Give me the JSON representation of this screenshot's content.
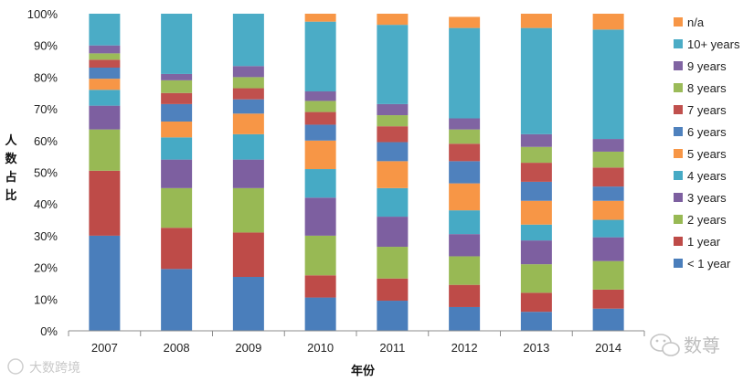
{
  "chart_data": {
    "type": "bar",
    "stacked": true,
    "percent": true,
    "categories": [
      "2007",
      "2008",
      "2009",
      "2010",
      "2011",
      "2012",
      "2013",
      "2014"
    ],
    "xlabel": "年份",
    "ylabel": "人数占比",
    "ylim": [
      0,
      100
    ],
    "yticks": [
      "0%",
      "10%",
      "20%",
      "30%",
      "40%",
      "50%",
      "60%",
      "70%",
      "80%",
      "90%",
      "100%"
    ],
    "legend_position": "right",
    "grid": false,
    "series": [
      {
        "name": "< 1 year",
        "color": "#4a7ebb",
        "values": [
          30,
          19.5,
          17,
          10.5,
          9.5,
          7.5,
          6,
          7
        ]
      },
      {
        "name": "1 year",
        "color": "#be4b48",
        "values": [
          20.5,
          13,
          14,
          7,
          7,
          7,
          6,
          6
        ]
      },
      {
        "name": "2 years",
        "color": "#98b954",
        "values": [
          13,
          12.5,
          14,
          12.5,
          10,
          9,
          9,
          9
        ]
      },
      {
        "name": "3 years",
        "color": "#7d5fa0",
        "values": [
          7.5,
          9,
          9,
          12,
          9.5,
          7,
          7.5,
          7.5
        ]
      },
      {
        "name": "4 years",
        "color": "#46aac5",
        "values": [
          5,
          7,
          8,
          9,
          9,
          7.5,
          5,
          5.5
        ]
      },
      {
        "name": "5 years",
        "color": "#f79646",
        "values": [
          3.5,
          5,
          6.5,
          9,
          8.5,
          8.5,
          7.5,
          6
        ]
      },
      {
        "name": "6 years",
        "color": "#4f81bd",
        "values": [
          3.5,
          5.5,
          4.5,
          5,
          6,
          7,
          6,
          4.5
        ]
      },
      {
        "name": "7 years",
        "color": "#c0504d",
        "values": [
          2.5,
          3.5,
          3.5,
          4,
          5,
          5.5,
          6,
          6
        ]
      },
      {
        "name": "8 years",
        "color": "#9bbb59",
        "values": [
          2,
          4,
          3.5,
          3.5,
          3.5,
          4.5,
          5,
          5
        ]
      },
      {
        "name": "9 years",
        "color": "#8064a2",
        "values": [
          2.5,
          2,
          3.5,
          3,
          3.5,
          3.5,
          4,
          4
        ]
      },
      {
        "name": "10+ years",
        "color": "#4bacc6",
        "values": [
          10,
          19,
          16.5,
          22,
          25,
          28.5,
          33.5,
          34.5
        ]
      },
      {
        "name": "n/a",
        "color": "#f79646",
        "values": [
          0,
          0,
          0,
          2.5,
          3.5,
          3.5,
          4.5,
          5
        ]
      }
    ]
  },
  "watermarks": {
    "left": "大数跨境",
    "right": "数尊"
  }
}
